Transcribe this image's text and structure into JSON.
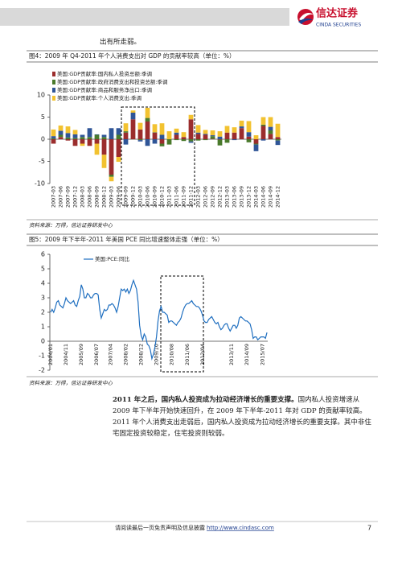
{
  "header": {
    "logo_cn": "信达证券",
    "logo_en": "CINDA SECURITIES"
  },
  "intro_text": "出有所走弱。",
  "chart_data": [
    {
      "type": "bar",
      "stacked": true,
      "title": "图4：2009 年 Q4-2011 年个人消费支出对 GDP 的贡献率较高（单位：%）",
      "source": "资料来源：万得，信达证券研发中心",
      "categories": [
        "2007-03",
        "2007-06",
        "2007-09",
        "2007-12",
        "2008-03",
        "2008-06",
        "2008-09",
        "2008-12",
        "2009-03",
        "2009-06",
        "2009-09",
        "2009-12",
        "2010-03",
        "2010-06",
        "2010-09",
        "2010-12",
        "2011-03",
        "2011-06",
        "2011-09",
        "2011-12",
        "2012-03",
        "2012-06",
        "2012-09",
        "2012-12",
        "2013-03",
        "2013-06",
        "2013-09",
        "2013-12",
        "2014-03",
        "2014-06",
        "2014-09",
        "2014-12"
      ],
      "series": [
        {
          "name": "美国:GDP贡献率:国内私人投资总额:季调",
          "color": "#9b2d2d",
          "values": [
            -1.0,
            0.5,
            -0.3,
            -1.5,
            -1.0,
            -1.5,
            -1.0,
            -3.5,
            -8.0,
            -4.0,
            1.5,
            4.5,
            2.2,
            4.0,
            1.5,
            -1.0,
            0.0,
            1.0,
            0.5,
            4.5,
            1.2,
            1.0,
            0.1,
            -0.1,
            1.5,
            1.5,
            2.5,
            0.6,
            -1.0,
            3.0,
            1.2,
            0.5
          ]
        },
        {
          "name": "美国:GDP贡献率:政府消费支出和投资总额:季调",
          "color": "#4a7a2c",
          "values": [
            0.2,
            0.5,
            0.4,
            0.3,
            0.5,
            0.5,
            1.0,
            0.5,
            -0.5,
            1.0,
            0.3,
            0.0,
            -0.2,
            0.8,
            0.1,
            -0.6,
            -1.2,
            -0.2,
            -0.4,
            -0.5,
            -0.3,
            -0.2,
            0.6,
            -1.3,
            -0.8,
            0.0,
            0.0,
            -0.7,
            -0.2,
            0.3,
            0.8,
            -0.3
          ]
        },
        {
          "name": "美国:GDP贡献率:商品和服务净出口:季调",
          "color": "#2f5597",
          "values": [
            0.5,
            0.9,
            1.0,
            0.8,
            0.5,
            2.0,
            0.1,
            0.5,
            2.5,
            1.5,
            -1.2,
            1.5,
            -0.3,
            -1.5,
            -1.0,
            1.0,
            0.0,
            0.5,
            0.0,
            -0.3,
            0.3,
            0.2,
            0.2,
            0.6,
            0.0,
            -0.2,
            0.4,
            1.0,
            -1.5,
            -0.3,
            0.8,
            -1.0
          ]
        },
        {
          "name": "美国:GDP贡献率:个人消费支出:季调",
          "color": "#f2c230",
          "values": [
            1.5,
            1.2,
            1.5,
            1.0,
            -0.5,
            0.0,
            -2.5,
            -3.0,
            -1.0,
            -1.1,
            1.8,
            0.5,
            1.5,
            2.3,
            1.8,
            2.6,
            1.8,
            0.9,
            1.1,
            1.0,
            1.7,
            0.9,
            1.1,
            1.2,
            1.5,
            1.2,
            1.3,
            2.5,
            0.9,
            1.7,
            2.2,
            3.0
          ]
        }
      ],
      "ylim": [
        -10,
        10
      ],
      "yticks": [
        -10,
        -5,
        0,
        5,
        10
      ]
    },
    {
      "type": "line",
      "title": "图5：2009 年下半年-2011 年美国 PCE 同比增速整体走强（单位：%）",
      "source": "资料来源：万得，信达证券研发中心",
      "categories": [
        "2004/01",
        null,
        null,
        null,
        null,
        null,
        null,
        null,
        null,
        null,
        "2004/11",
        null,
        null,
        null,
        null,
        null,
        null,
        null,
        null,
        null,
        "2005/09",
        null,
        null,
        null,
        null,
        null,
        null,
        null,
        null,
        null,
        "2006/07",
        null,
        null,
        null,
        null,
        null,
        null,
        null,
        null,
        "2007/04",
        null,
        null,
        null,
        null,
        null,
        null,
        null,
        null,
        null,
        "2008/02",
        null,
        null,
        null,
        null,
        null,
        null,
        null,
        null,
        null,
        "2008/12",
        null,
        null,
        null,
        null,
        null,
        null,
        null,
        null,
        null,
        "2009/10",
        null,
        null,
        null,
        null,
        null,
        null,
        null,
        null,
        null,
        "2010/08",
        null,
        null,
        null,
        null,
        null,
        null,
        null,
        null,
        null,
        "2011/06",
        null,
        null,
        null,
        null,
        null,
        null,
        null,
        null,
        null,
        "2012/04",
        null,
        null,
        null,
        null,
        null,
        null,
        null,
        null,
        null,
        null,
        null,
        null,
        null,
        null,
        null,
        null,
        null,
        null,
        "2013/11",
        null,
        null,
        null,
        null,
        null,
        null,
        null,
        null,
        null,
        "2014/09",
        null,
        null,
        null,
        null,
        null,
        null,
        null,
        null,
        null,
        "2015/07",
        null,
        null,
        null
      ],
      "series": [
        {
          "name": "美国:PCE:同比",
          "color": "#1f6fc0",
          "values": [
            2.0,
            2.2,
            2.0,
            2.3,
            2.7,
            2.8,
            2.5,
            2.4,
            2.3,
            2.6,
            3.0,
            2.8,
            2.7,
            2.6,
            2.7,
            2.8,
            2.5,
            2.4,
            2.8,
            3.1,
            3.9,
            3.6,
            3.0,
            3.0,
            3.3,
            3.2,
            3.0,
            3.0,
            3.2,
            3.3,
            3.3,
            3.2,
            2.2,
            1.6,
            1.9,
            2.2,
            2.1,
            2.2,
            2.5,
            2.5,
            2.6,
            2.5,
            2.3,
            2.0,
            2.4,
            3.0,
            3.6,
            3.5,
            3.6,
            3.4,
            3.6,
            3.3,
            3.5,
            3.9,
            4.2,
            3.9,
            3.6,
            2.7,
            1.1,
            0.4,
            0.1,
            0.5,
            0.3,
            -0.2,
            -0.3,
            -0.6,
            -1.2,
            -0.9,
            -0.4,
            0.3,
            1.4,
            2.1,
            2.4,
            2.0,
            2.0,
            1.9,
            1.8,
            1.3,
            1.4,
            1.4,
            1.3,
            1.2,
            1.1,
            1.3,
            1.4,
            1.6,
            2.0,
            2.3,
            2.5,
            2.6,
            2.6,
            2.7,
            2.8,
            2.6,
            2.5,
            2.4,
            2.4,
            2.3,
            2.1,
            1.8,
            1.4,
            1.3,
            1.3,
            1.5,
            1.6,
            1.7,
            1.5,
            1.3,
            1.2,
            1.3,
            1.0,
            0.8,
            0.9,
            1.1,
            1.2,
            1.2,
            0.9,
            0.7,
            0.9,
            1.1,
            1.1,
            0.9,
            1.1,
            1.6,
            1.7,
            1.6,
            1.5,
            1.4,
            1.4,
            1.3,
            1.2,
            0.8,
            0.2,
            0.3,
            0.3,
            0.1,
            0.2,
            0.3,
            0.3,
            0.3,
            0.2,
            0.6
          ]
        }
      ],
      "ylim": [
        -2,
        6
      ],
      "yticks": [
        -2,
        -1,
        0,
        1,
        2,
        3,
        4,
        5,
        6
      ]
    }
  ],
  "paragraph": {
    "bold": "2011 年之后，国内私人投资成为拉动经济增长的重要支撑。",
    "text": "国内私人投资增速从 2009 年下半年开始快速回升，在 2009 年下半年-2011 年对 GDP 的贡献率较高。2011 年个人消费支出走弱后，国内私人投资成为拉动经济增长的重要支撑。其中非住宅固定投资较稳定，住宅投资则较弱。"
  },
  "footer": {
    "disclaimer": "请阅读最后一页免责声明及信息披露",
    "url": "http://www.cindasc.com",
    "page": 7
  }
}
